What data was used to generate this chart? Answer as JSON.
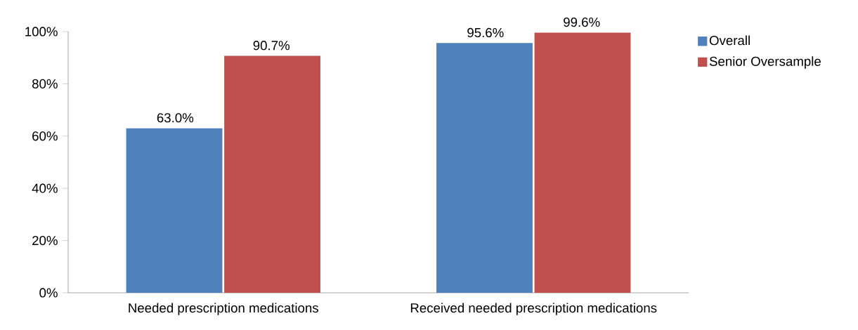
{
  "chart_data": {
    "type": "bar",
    "categories": [
      "Needed prescription medications",
      "Received needed prescription medications"
    ],
    "series": [
      {
        "name": "Overall",
        "color": "#4f81bd",
        "values": [
          63.0,
          95.6
        ],
        "value_labels": [
          "63.0%",
          "95.6%"
        ]
      },
      {
        "name": "Senior Oversample",
        "color": "#c0504d",
        "values": [
          90.7,
          99.6
        ],
        "value_labels": [
          "90.7%",
          "99.6%"
        ]
      }
    ],
    "ylim": [
      0,
      100
    ],
    "yticks": [
      {
        "value": 0,
        "label": "0%"
      },
      {
        "value": 20,
        "label": "20%"
      },
      {
        "value": 40,
        "label": "40%"
      },
      {
        "value": 60,
        "label": "60%"
      },
      {
        "value": 80,
        "label": "80%"
      },
      {
        "value": 100,
        "label": "100%"
      }
    ],
    "grid": false,
    "legend": "right"
  }
}
